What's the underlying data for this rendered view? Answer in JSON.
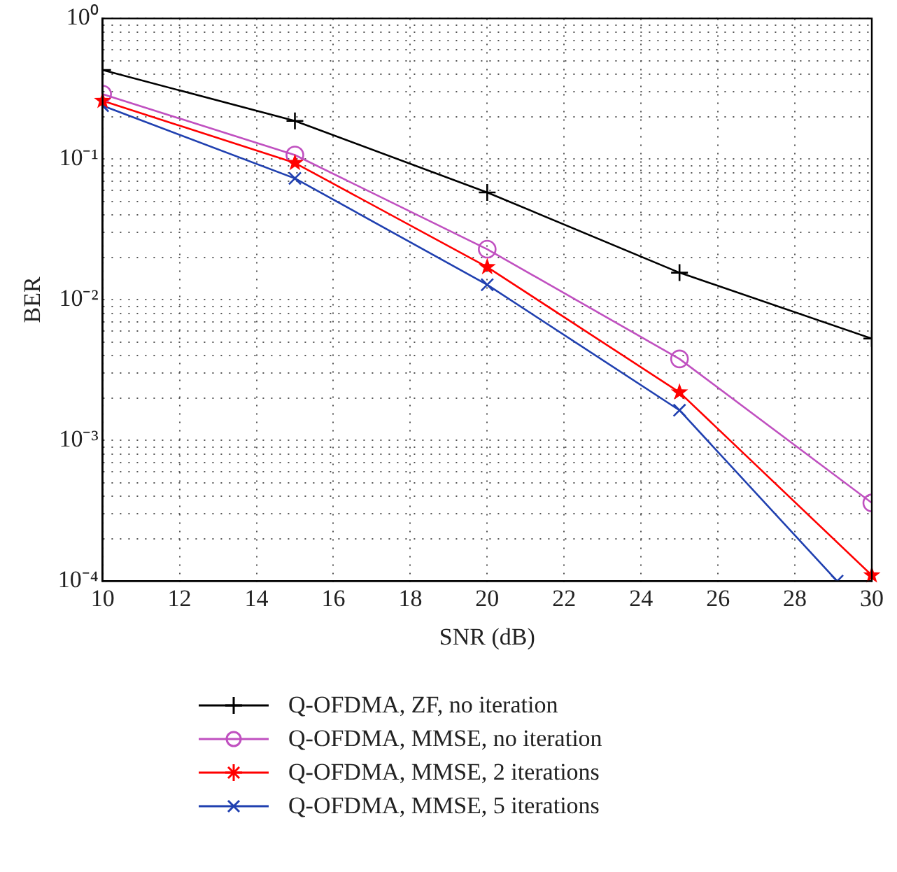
{
  "chart_data": {
    "type": "line",
    "xlabel": "SNR (dB)",
    "ylabel": "BER",
    "x": [
      10,
      15,
      20,
      25,
      30
    ],
    "xlim": [
      10,
      30
    ],
    "xticks": [
      10,
      12,
      14,
      16,
      18,
      20,
      22,
      24,
      26,
      28,
      30
    ],
    "ylim": [
      0.0001,
      1
    ],
    "log": "y",
    "yticks": [
      {
        "value": 0.0001,
        "label": "10⁻⁴"
      },
      {
        "value": 0.0002,
        "label": null
      },
      {
        "value": 0.0003,
        "label": null
      },
      {
        "value": 0.0004,
        "label": null
      },
      {
        "value": 0.0005,
        "label": null
      },
      {
        "value": 0.0006,
        "label": null
      },
      {
        "value": 0.0007,
        "label": null
      },
      {
        "value": 0.0008,
        "label": null
      },
      {
        "value": 0.0009,
        "label": null
      },
      {
        "value": 0.001,
        "label": "10⁻³"
      },
      {
        "value": 0.002,
        "label": null
      },
      {
        "value": 0.003,
        "label": null
      },
      {
        "value": 0.004,
        "label": null
      },
      {
        "value": 0.005,
        "label": null
      },
      {
        "value": 0.006,
        "label": null
      },
      {
        "value": 0.007,
        "label": null
      },
      {
        "value": 0.008,
        "label": null
      },
      {
        "value": 0.009,
        "label": null
      },
      {
        "value": 0.01,
        "label": "10⁻²"
      },
      {
        "value": 0.02,
        "label": null
      },
      {
        "value": 0.03,
        "label": null
      },
      {
        "value": 0.04,
        "label": null
      },
      {
        "value": 0.05,
        "label": null
      },
      {
        "value": 0.06,
        "label": null
      },
      {
        "value": 0.07,
        "label": null
      },
      {
        "value": 0.08,
        "label": null
      },
      {
        "value": 0.09,
        "label": null
      },
      {
        "value": 0.1,
        "label": "10⁻¹"
      },
      {
        "value": 0.2,
        "label": null
      },
      {
        "value": 0.3,
        "label": null
      },
      {
        "value": 0.4,
        "label": null
      },
      {
        "value": 0.5,
        "label": null
      },
      {
        "value": 0.6,
        "label": null
      },
      {
        "value": 0.7,
        "label": null
      },
      {
        "value": 0.8,
        "label": null
      },
      {
        "value": 0.9,
        "label": null
      },
      {
        "value": 1,
        "label": "10⁰"
      }
    ],
    "grid": true,
    "line_style": "solid",
    "legend": "bottom",
    "series": [
      {
        "name": "Q-OFDMA, ZF, no iteration",
        "color": "#000000",
        "marker": "cross",
        "values": [
          0.43,
          0.187,
          0.058,
          0.0156,
          0.0053
        ]
      },
      {
        "name": "Q-OFDMA, MMSE, no iteration",
        "color": "#c050c0",
        "marker": "circle",
        "values": [
          0.29,
          0.107,
          0.0229,
          0.0038,
          0.00036
        ]
      },
      {
        "name": "Q-OFDMA, MMSE, 2 iterations",
        "color": "#ff0000",
        "marker": "star",
        "values": [
          0.26,
          0.094,
          0.0171,
          0.0022,
          0.00011
        ]
      },
      {
        "name": "Q-OFDMA, MMSE, 5 iterations",
        "color": "#2040b0",
        "marker": "crossRot",
        "x": [
          10,
          15,
          20,
          25,
          29.1
        ],
        "values": [
          0.24,
          0.073,
          0.0128,
          0.00164,
          0.0001
        ]
      }
    ]
  }
}
